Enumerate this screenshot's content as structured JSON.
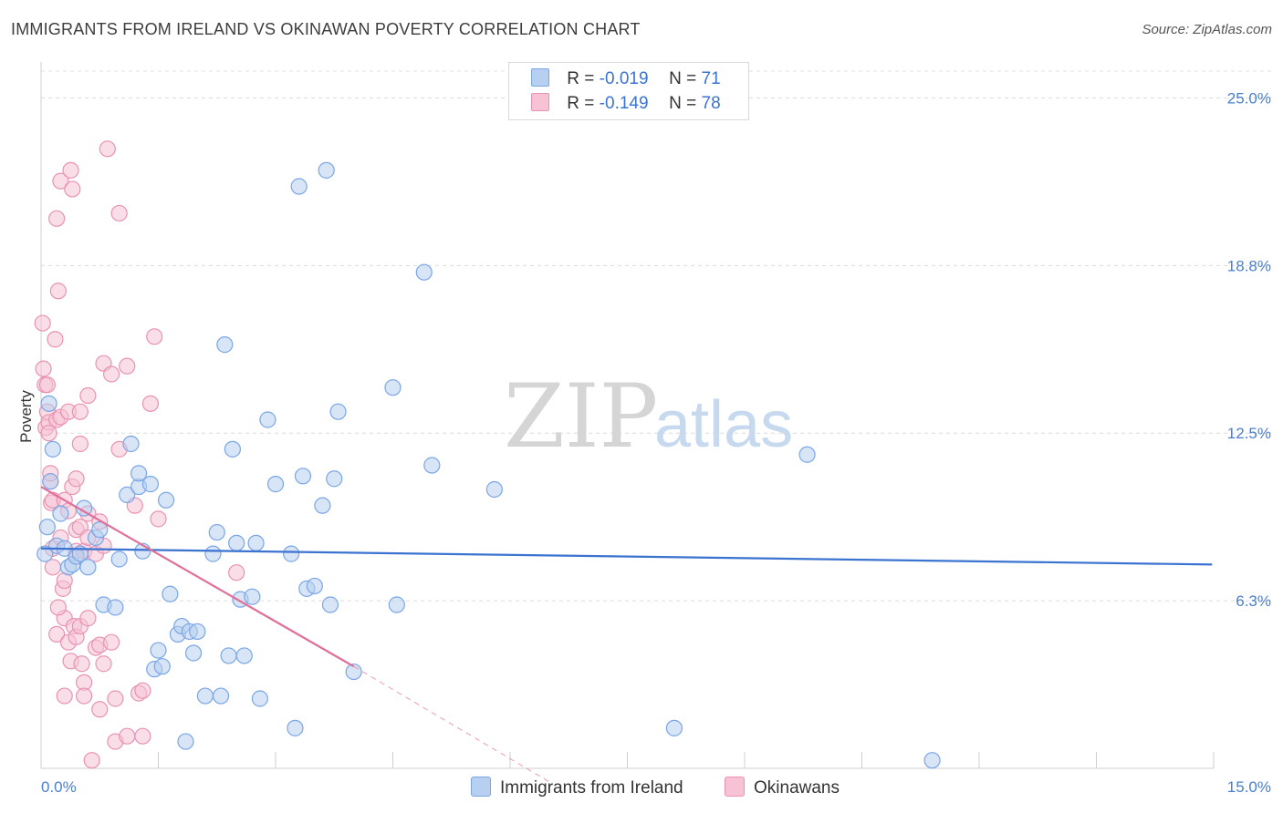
{
  "header": {
    "title": "IMMIGRANTS FROM IRELAND VS OKINAWAN POVERTY CORRELATION CHART",
    "source": "Source: ZipAtlas.com"
  },
  "legend": {
    "rows": [
      {
        "r_label": "R =",
        "r_value": "-0.019",
        "n_label": "N =",
        "n_value": "71",
        "color": "#7aa6e6",
        "fill": "#b7cff1"
      },
      {
        "r_label": "R =",
        "r_value": "-0.149",
        "n_label": "N =",
        "n_value": "78",
        "color": "#e992b3",
        "fill": "#f6c2d4"
      }
    ]
  },
  "bottom_legend": {
    "items": [
      {
        "label": "Immigrants from Ireland",
        "color": "#7aa6e6",
        "fill": "#b7cff1"
      },
      {
        "label": "Okinawans",
        "color": "#e992b3",
        "fill": "#f6c2d4"
      }
    ]
  },
  "watermark": {
    "zip": "ZIP",
    "atlas": "atlas"
  },
  "chart_data": {
    "type": "scatter",
    "ylabel": "Poverty",
    "xlabel": "",
    "x_ticks": [
      "0.0%",
      "15.0%"
    ],
    "y_ticks": [
      "25.0%",
      "18.8%",
      "12.5%",
      "6.3%"
    ],
    "y_tick_values": [
      25.0,
      18.75,
      12.5,
      6.25
    ],
    "xlim": [
      0,
      15
    ],
    "ylim": [
      0,
      26
    ],
    "grid": true,
    "legend_position": "top-center",
    "series": [
      {
        "name": "Immigrants from Ireland",
        "color": "#3b73d1",
        "fill": "#b7cff1",
        "stroke": "#7aa6e6",
        "trend": {
          "x": [
            0.0,
            14.98
          ],
          "y": [
            8.2,
            7.6
          ],
          "style": "solid"
        },
        "points": [
          [
            0.1,
            13.6
          ],
          [
            0.15,
            11.9
          ],
          [
            0.12,
            10.7
          ],
          [
            0.2,
            8.3
          ],
          [
            0.25,
            9.5
          ],
          [
            0.3,
            8.2
          ],
          [
            0.35,
            7.5
          ],
          [
            0.4,
            7.6
          ],
          [
            0.45,
            7.9
          ],
          [
            0.5,
            8.0
          ],
          [
            0.55,
            9.7
          ],
          [
            0.6,
            7.5
          ],
          [
            0.7,
            8.6
          ],
          [
            0.75,
            8.9
          ],
          [
            0.8,
            6.1
          ],
          [
            0.95,
            6.0
          ],
          [
            1.0,
            7.8
          ],
          [
            1.1,
            10.2
          ],
          [
            1.15,
            12.1
          ],
          [
            1.25,
            10.5
          ],
          [
            1.25,
            11.0
          ],
          [
            1.3,
            8.1
          ],
          [
            1.4,
            10.6
          ],
          [
            1.45,
            3.7
          ],
          [
            1.5,
            4.4
          ],
          [
            1.55,
            3.8
          ],
          [
            1.6,
            10.0
          ],
          [
            1.65,
            6.5
          ],
          [
            1.75,
            5.0
          ],
          [
            1.8,
            5.3
          ],
          [
            1.85,
            1.0
          ],
          [
            1.9,
            5.1
          ],
          [
            1.95,
            4.3
          ],
          [
            2.0,
            5.1
          ],
          [
            2.1,
            2.7
          ],
          [
            2.2,
            8.0
          ],
          [
            2.25,
            8.8
          ],
          [
            2.3,
            2.7
          ],
          [
            2.35,
            15.8
          ],
          [
            2.4,
            4.2
          ],
          [
            2.45,
            11.9
          ],
          [
            2.5,
            8.4
          ],
          [
            2.55,
            6.3
          ],
          [
            2.6,
            4.2
          ],
          [
            2.7,
            6.4
          ],
          [
            2.75,
            8.4
          ],
          [
            2.8,
            2.6
          ],
          [
            2.9,
            13.0
          ],
          [
            3.0,
            10.6
          ],
          [
            3.2,
            8.0
          ],
          [
            3.25,
            1.5
          ],
          [
            3.3,
            21.7
          ],
          [
            3.35,
            10.9
          ],
          [
            3.4,
            6.7
          ],
          [
            3.5,
            6.8
          ],
          [
            3.6,
            9.8
          ],
          [
            3.65,
            22.3
          ],
          [
            3.7,
            6.1
          ],
          [
            3.75,
            10.8
          ],
          [
            3.8,
            13.3
          ],
          [
            4.0,
            3.6
          ],
          [
            4.5,
            14.2
          ],
          [
            4.55,
            6.1
          ],
          [
            4.9,
            18.5
          ],
          [
            5.0,
            11.3
          ],
          [
            5.8,
            10.4
          ],
          [
            8.1,
            1.5
          ],
          [
            9.8,
            11.7
          ],
          [
            11.4,
            0.3
          ],
          [
            0.05,
            8.0
          ],
          [
            0.08,
            9.0
          ]
        ]
      },
      {
        "name": "Okinawans",
        "color": "#e0709a",
        "fill": "#f6c2d4",
        "stroke": "#e992b3",
        "trend": {
          "x": [
            0.0,
            4.0
          ],
          "y": [
            10.5,
            3.8
          ],
          "style": "solid",
          "dashed_extension": {
            "x": [
              4.0,
              6.5
            ],
            "y": [
              3.8,
              -0.5
            ]
          }
        },
        "points": [
          [
            0.02,
            16.6
          ],
          [
            0.03,
            14.9
          ],
          [
            0.05,
            14.3
          ],
          [
            0.06,
            12.7
          ],
          [
            0.08,
            13.3
          ],
          [
            0.1,
            12.9
          ],
          [
            0.12,
            10.7
          ],
          [
            0.13,
            9.9
          ],
          [
            0.15,
            10.0
          ],
          [
            0.15,
            8.2
          ],
          [
            0.18,
            16.0
          ],
          [
            0.2,
            13.0
          ],
          [
            0.2,
            20.5
          ],
          [
            0.2,
            5.0
          ],
          [
            0.22,
            17.8
          ],
          [
            0.25,
            21.9
          ],
          [
            0.25,
            13.1
          ],
          [
            0.25,
            8.6
          ],
          [
            0.28,
            6.7
          ],
          [
            0.3,
            10.0
          ],
          [
            0.3,
            5.6
          ],
          [
            0.3,
            2.7
          ],
          [
            0.3,
            7.0
          ],
          [
            0.35,
            13.3
          ],
          [
            0.35,
            9.6
          ],
          [
            0.35,
            4.7
          ],
          [
            0.38,
            22.3
          ],
          [
            0.38,
            4.0
          ],
          [
            0.4,
            21.6
          ],
          [
            0.4,
            10.5
          ],
          [
            0.42,
            5.3
          ],
          [
            0.45,
            10.8
          ],
          [
            0.45,
            8.9
          ],
          [
            0.45,
            8.1
          ],
          [
            0.45,
            4.9
          ],
          [
            0.5,
            12.1
          ],
          [
            0.5,
            13.3
          ],
          [
            0.5,
            9.0
          ],
          [
            0.5,
            5.3
          ],
          [
            0.52,
            3.9
          ],
          [
            0.55,
            3.2
          ],
          [
            0.55,
            2.7
          ],
          [
            0.55,
            8.1
          ],
          [
            0.6,
            9.5
          ],
          [
            0.6,
            8.6
          ],
          [
            0.6,
            5.6
          ],
          [
            0.6,
            13.9
          ],
          [
            0.65,
            0.3
          ],
          [
            0.7,
            8.0
          ],
          [
            0.7,
            4.5
          ],
          [
            0.75,
            4.6
          ],
          [
            0.75,
            2.2
          ],
          [
            0.75,
            9.2
          ],
          [
            0.8,
            8.3
          ],
          [
            0.8,
            15.1
          ],
          [
            0.8,
            3.9
          ],
          [
            0.85,
            23.1
          ],
          [
            0.9,
            14.7
          ],
          [
            0.9,
            4.7
          ],
          [
            0.95,
            1.0
          ],
          [
            0.95,
            2.6
          ],
          [
            1.0,
            11.9
          ],
          [
            1.0,
            20.7
          ],
          [
            1.1,
            1.2
          ],
          [
            1.1,
            15.0
          ],
          [
            1.2,
            9.8
          ],
          [
            1.25,
            2.8
          ],
          [
            1.3,
            2.9
          ],
          [
            1.3,
            1.2
          ],
          [
            1.4,
            13.6
          ],
          [
            1.45,
            16.1
          ],
          [
            1.5,
            9.3
          ],
          [
            2.5,
            7.3
          ],
          [
            0.08,
            14.3
          ],
          [
            0.1,
            12.5
          ],
          [
            0.12,
            11.0
          ],
          [
            0.15,
            7.5
          ],
          [
            0.22,
            6.0
          ]
        ]
      }
    ]
  }
}
